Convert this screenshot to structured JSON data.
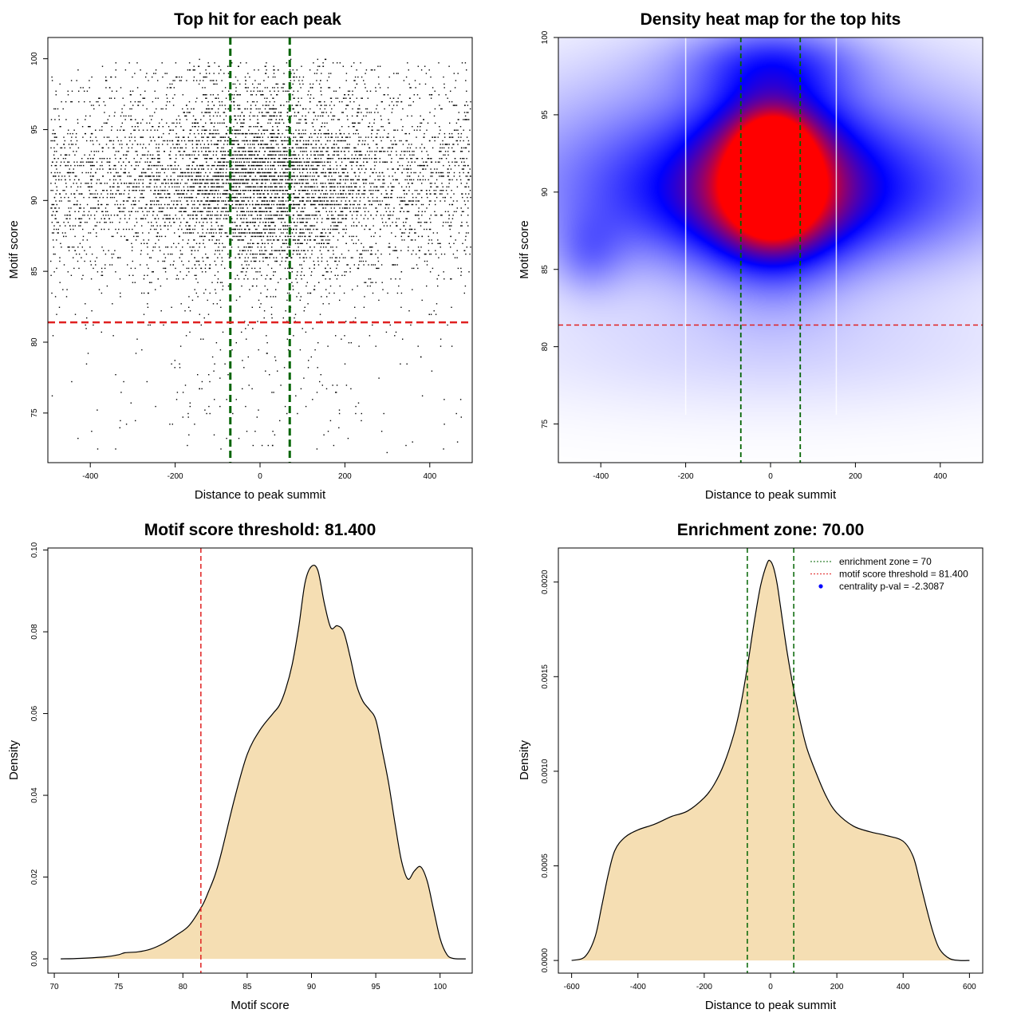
{
  "chart_data": [
    {
      "type": "scatter",
      "title": "Top hit for each peak",
      "xlabel": "Distance to peak summit",
      "ylabel": "Motif score",
      "xlim": [
        -500,
        500
      ],
      "ylim": [
        71.5,
        101.5
      ],
      "xticks": [
        -400,
        -200,
        0,
        200,
        400
      ],
      "yticks": [
        75,
        80,
        85,
        90,
        95,
        100
      ],
      "point_count": 7000,
      "point_distribution": {
        "x_center": 0,
        "x_core_sd": 140,
        "x_range": [
          -495,
          495
        ],
        "y_modes": [
          {
            "center": 92.5,
            "sd": 2.6,
            "weight": 0.5
          },
          {
            "center": 89.5,
            "sd": 3.2,
            "weight": 0.5
          }
        ],
        "y_range": [
          72.3,
          99.9
        ]
      },
      "reference_lines": {
        "enrichment_zone": [
          -70,
          70
        ],
        "enrichment_color": "#006400",
        "motif_threshold": 81.4,
        "threshold_color": "#e02020"
      }
    },
    {
      "type": "heatmap",
      "title": "Density heat map for the top hits",
      "xlabel": "Distance to peak summit",
      "ylabel": "Motif score",
      "xlim": [
        -500,
        500
      ],
      "ylim": [
        72.5,
        100
      ],
      "xticks": [
        -400,
        -200,
        0,
        200,
        400
      ],
      "yticks": [
        75,
        80,
        85,
        90,
        95,
        100
      ],
      "color_scale": [
        "#ffffff",
        "#0000ff",
        "#ff0000"
      ],
      "hotspots": [
        {
          "x": 5,
          "y": 92.6,
          "level": "max"
        },
        {
          "x": 5,
          "y": 89.7,
          "level": "max"
        }
      ],
      "reference_lines": {
        "enrichment_zone": [
          -70,
          70
        ],
        "enrichment_color": "#006400",
        "motif_threshold": 81.4,
        "threshold_color": "#e02020"
      }
    },
    {
      "type": "area",
      "title": "Motif score threshold: 81.400",
      "xlabel": "Motif score",
      "ylabel": "Density",
      "xlim": [
        69.5,
        102.5
      ],
      "ylim": [
        -0.0035,
        0.1005
      ],
      "xticks": [
        70,
        75,
        80,
        85,
        90,
        95,
        100
      ],
      "yticks": [
        "0.00",
        "0.02",
        "0.04",
        "0.06",
        "0.08",
        "0.10"
      ],
      "fill": "#f5deb3",
      "x": [
        70.5,
        72,
        74,
        75,
        75.5,
        76.5,
        77.5,
        78.5,
        79.5,
        80.5,
        81.5,
        82,
        82.5,
        83,
        84,
        85,
        86,
        87,
        87.5,
        88,
        88.5,
        89,
        89.5,
        90,
        90.5,
        91,
        91.5,
        92,
        92.5,
        93,
        93.5,
        94,
        94.5,
        95,
        95.5,
        96,
        96.5,
        97,
        97.5,
        98,
        98.5,
        99,
        99.5,
        100,
        100.5,
        101,
        102
      ],
      "y": [
        0,
        0.0001,
        0.0005,
        0.001,
        0.0015,
        0.0017,
        0.0024,
        0.0038,
        0.0058,
        0.0082,
        0.013,
        0.0165,
        0.0205,
        0.026,
        0.039,
        0.05,
        0.056,
        0.06,
        0.062,
        0.066,
        0.072,
        0.081,
        0.092,
        0.096,
        0.095,
        0.087,
        0.081,
        0.0815,
        0.08,
        0.074,
        0.067,
        0.063,
        0.061,
        0.0585,
        0.051,
        0.043,
        0.033,
        0.024,
        0.0195,
        0.0215,
        0.0225,
        0.019,
        0.012,
        0.005,
        0.0012,
        0.0001,
        0
      ],
      "reference_lines": {
        "motif_threshold": 81.4,
        "threshold_color": "#e02020"
      }
    },
    {
      "type": "area",
      "title": "Enrichment zone: 70.00",
      "xlabel": "Distance to peak summit",
      "ylabel": "Density",
      "xlim": [
        -640,
        640
      ],
      "ylim": [
        -6.7e-05,
        0.00218
      ],
      "xticks": [
        -600,
        -400,
        -200,
        0,
        200,
        400,
        600
      ],
      "yticks": [
        "0.0000",
        "0.0005",
        "0.0010",
        "0.0015",
        "0.0020"
      ],
      "fill": "#f5deb3",
      "x": [
        -600,
        -560,
        -530,
        -510,
        -490,
        -470,
        -440,
        -400,
        -350,
        -300,
        -250,
        -200,
        -170,
        -140,
        -110,
        -90,
        -70,
        -50,
        -30,
        -10,
        0,
        10,
        20,
        30,
        50,
        70,
        90,
        110,
        140,
        170,
        200,
        250,
        300,
        350,
        400,
        430,
        450,
        470,
        490,
        510,
        540,
        570,
        600
      ],
      "y": [
        0,
        2e-05,
        0.00012,
        0.00028,
        0.00045,
        0.00058,
        0.00065,
        0.00069,
        0.00072,
        0.00076,
        0.00079,
        0.00086,
        0.00093,
        0.00104,
        0.0012,
        0.00135,
        0.00155,
        0.00178,
        0.00198,
        0.0021,
        0.00211,
        0.00207,
        0.00199,
        0.00187,
        0.00163,
        0.00143,
        0.00126,
        0.00112,
        0.00098,
        0.00086,
        0.00078,
        0.00071,
        0.00068,
        0.00066,
        0.00063,
        0.00055,
        0.00042,
        0.00028,
        0.00015,
        6e-05,
        1e-05,
        0,
        0
      ],
      "reference_lines": {
        "enrichment_zone": [
          -70,
          70
        ],
        "enrichment_color": "#006400"
      },
      "legend": {
        "placement": "top-right",
        "entries": [
          {
            "label": "enrichment zone = 70",
            "style": "dotted",
            "color": "#006400"
          },
          {
            "label": "motif score threshold = 81.400",
            "style": "dotted",
            "color": "#e02020"
          },
          {
            "label": "centrality p-val = -2.3087",
            "style": "point",
            "color": "#0000ff"
          }
        ]
      }
    }
  ]
}
